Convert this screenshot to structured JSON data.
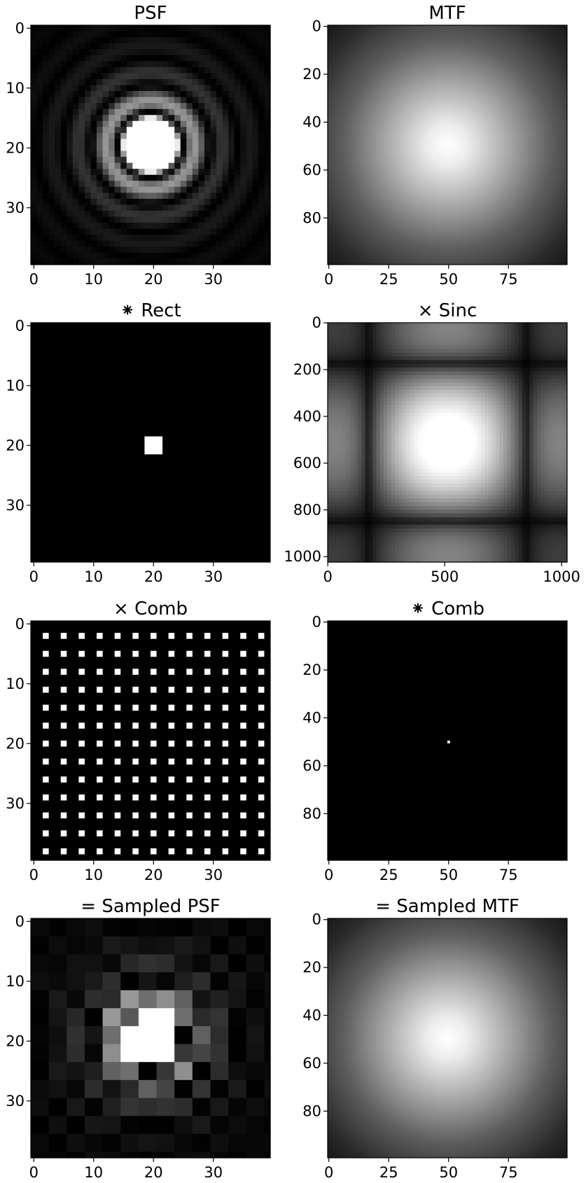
{
  "figure": {
    "background": "#ffffff",
    "colormap": "gray"
  },
  "chart_data": [
    {
      "id": "psf",
      "type": "heatmap",
      "title": "PSF",
      "content": "airy",
      "shape": [
        40,
        40
      ],
      "xlim": [
        0,
        39
      ],
      "ylim": [
        0,
        39
      ],
      "xticks": [
        0,
        10,
        20,
        30
      ],
      "yticks": [
        0,
        10,
        20,
        30
      ]
    },
    {
      "id": "mtf",
      "type": "heatmap",
      "title": "MTF",
      "content": "smooth-peak",
      "shape": [
        100,
        100
      ],
      "xlim": [
        0,
        99
      ],
      "ylim": [
        0,
        99
      ],
      "xticks": [
        0,
        25,
        50,
        75
      ],
      "yticks": [
        0,
        20,
        40,
        60,
        80
      ]
    },
    {
      "id": "rect",
      "type": "heatmap",
      "title": "⁕ Rect",
      "content": "rect",
      "shape": [
        40,
        40
      ],
      "xlim": [
        0,
        39
      ],
      "ylim": [
        0,
        39
      ],
      "xticks": [
        0,
        10,
        20,
        30
      ],
      "yticks": [
        0,
        10,
        20,
        30
      ],
      "rect_rows": [
        19,
        21
      ],
      "rect_cols": [
        19,
        21
      ]
    },
    {
      "id": "sinc",
      "type": "heatmap",
      "title": "× Sinc",
      "content": "sinc2",
      "shape": [
        1024,
        1024
      ],
      "xlim": [
        0,
        1023
      ],
      "ylim": [
        0,
        1023
      ],
      "xticks": [
        0,
        500,
        1000
      ],
      "yticks": [
        0,
        200,
        400,
        600,
        800,
        1000
      ]
    },
    {
      "id": "comb-spatial",
      "type": "heatmap",
      "title": "× Comb",
      "content": "comb",
      "shape": [
        40,
        40
      ],
      "xlim": [
        0,
        39
      ],
      "ylim": [
        0,
        39
      ],
      "xticks": [
        0,
        10,
        20,
        30
      ],
      "yticks": [
        0,
        10,
        20,
        30
      ],
      "comb_start": 2,
      "comb_step": 3
    },
    {
      "id": "comb-frequency",
      "type": "heatmap",
      "title": "⁕ Comb",
      "content": "dot",
      "shape": [
        100,
        100
      ],
      "xlim": [
        0,
        99
      ],
      "ylim": [
        0,
        99
      ],
      "xticks": [
        0,
        25,
        50,
        75
      ],
      "yticks": [
        0,
        20,
        40,
        60,
        80
      ],
      "dot": [
        50,
        50
      ]
    },
    {
      "id": "sampled-psf",
      "type": "heatmap",
      "title": "= Sampled PSF",
      "content": "sampled-airy",
      "shape": [
        40,
        40
      ],
      "xlim": [
        0,
        39
      ],
      "ylim": [
        0,
        39
      ],
      "xticks": [
        0,
        10,
        20,
        30
      ],
      "yticks": [
        0,
        10,
        20,
        30
      ],
      "block": 3
    },
    {
      "id": "sampled-mtf",
      "type": "heatmap",
      "title": "= Sampled MTF",
      "content": "smooth-peak",
      "shape": [
        100,
        100
      ],
      "xlim": [
        0,
        99
      ],
      "ylim": [
        0,
        99
      ],
      "xticks": [
        0,
        25,
        50,
        75
      ],
      "yticks": [
        0,
        20,
        40,
        60,
        80
      ]
    }
  ]
}
